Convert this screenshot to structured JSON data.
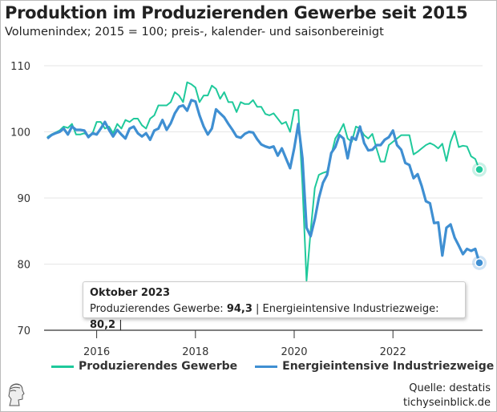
{
  "header": {
    "title": "Produktion im Produzierenden Gewerbe seit 2015",
    "subtitle": "Volumenindex; 2015 = 100; preis-, kalender- und saisonbereinigt"
  },
  "tooltip": {
    "title": "Oktober 2023",
    "label1": "Produzierendes Gewerbe: ",
    "value1": "94,3",
    "sep1": " | ",
    "label2": "Energieintensive Industriezweige: ",
    "value2": "80,2",
    "sep2": " |"
  },
  "footer": {
    "source": "Quelle: destatis",
    "site": "tichyseinblick.de",
    "logo": "tichyseinblick-logo"
  },
  "chart_data": {
    "type": "line",
    "title": "Produktion im Produzierenden Gewerbe seit 2015",
    "subtitle": "Volumenindex; 2015 = 100; preis-, kalender- und saisonbereinigt",
    "x_start": "2015-01",
    "x_end": "2023-10",
    "frequency": "monthly",
    "xticks": [
      "2016",
      "2018",
      "2020",
      "2022"
    ],
    "yticks": [
      "70",
      "80",
      "90",
      "100",
      "110"
    ],
    "ylim": [
      70,
      110
    ],
    "grid": true,
    "legend": "bottom",
    "series": [
      {
        "name": "Produzierendes Gewerbe",
        "color": "#1fc99b",
        "values": [
          99.2,
          99.6,
          99.9,
          100.2,
          100.8,
          100.6,
          101.2,
          99.6,
          99.6,
          99.8,
          99.4,
          99.8,
          101.5,
          101.5,
          100.5,
          100.8,
          99.8,
          101.2,
          100.5,
          101.8,
          101.5,
          102,
          102,
          101,
          100.5,
          102,
          102.5,
          104,
          104,
          104,
          104.5,
          106,
          105.5,
          104.5,
          107.5,
          107.2,
          106.7,
          104.5,
          105.5,
          105.5,
          107,
          106.5,
          105,
          106,
          104.5,
          104.5,
          103,
          104.5,
          104.2,
          104.2,
          104.8,
          103.8,
          103.8,
          102.7,
          102.5,
          102.8,
          102,
          101.2,
          101.5,
          100,
          103.3,
          103.3,
          92,
          77.5,
          85,
          91.5,
          93.5,
          93.8,
          94,
          96.5,
          99,
          100,
          101.2,
          99,
          98.5,
          100.8,
          100.5,
          99.5,
          99,
          99.7,
          97.5,
          95.5,
          95.5,
          98,
          98.5,
          99,
          99.5,
          99.5,
          99.5,
          96.6,
          97,
          97.5,
          98,
          98.3,
          98,
          97.5,
          98.2,
          95.6,
          98.5,
          100.1,
          97.7,
          97.9,
          97.8,
          96.3,
          95.9,
          94.3
        ]
      },
      {
        "name": "Energieintensive Industriezweige",
        "color": "#3f8fd2",
        "values": [
          99,
          99.5,
          99.8,
          100,
          100.5,
          99.6,
          100.8,
          100.3,
          100.3,
          100.2,
          99.2,
          99.8,
          99.6,
          100.5,
          101.5,
          100.3,
          99.3,
          100.3,
          99.6,
          99,
          100.5,
          100.8,
          99.8,
          99.3,
          99.8,
          98.8,
          100.2,
          100.5,
          101.8,
          100.3,
          101.3,
          102.8,
          103.8,
          104,
          103.2,
          104.8,
          104.6,
          102.5,
          100.8,
          99.6,
          100.5,
          103.4,
          102.8,
          102.2,
          101.2,
          100.3,
          99.3,
          99.1,
          99.7,
          100,
          99.9,
          98.9,
          98.1,
          97.8,
          97.6,
          97.8,
          96.4,
          97.5,
          96,
          94.5,
          97.5,
          101.2,
          96,
          85.5,
          84.2,
          86.8,
          90,
          92.3,
          93.5,
          96.8,
          97.7,
          99.5,
          99,
          96,
          99.2,
          98.8,
          100.8,
          98.3,
          97.2,
          97.3,
          98,
          98,
          98.8,
          99.2,
          100.2,
          98,
          97.3,
          95.3,
          95,
          93,
          93.6,
          91.8,
          89.5,
          89.2,
          86.2,
          86.3,
          81.3,
          85.5,
          86,
          84,
          82.8,
          81.5,
          82.3,
          82,
          82.3,
          80.2
        ]
      }
    ]
  }
}
